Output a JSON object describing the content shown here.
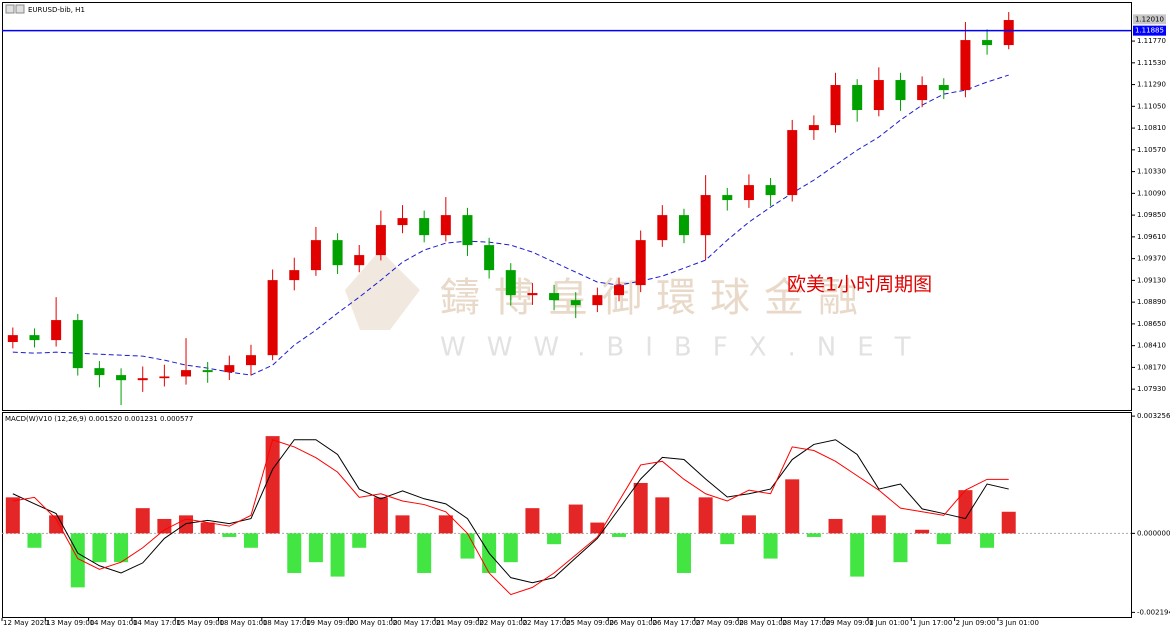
{
  "chart_data": {
    "type": "candlestick",
    "title": "EURUSD-bib, H1",
    "annotation": "欧美1小时周期图",
    "watermark": [
      "鑄博皇御環球金融",
      "WWW.BIBFX.NET"
    ],
    "categories": [
      "12 May 2020",
      null,
      "13 May 09:00",
      null,
      "14 May 01:00",
      null,
      "14 May 17:00",
      null,
      "15 May 09:00",
      null,
      "18 May 01:00",
      null,
      "18 May 17:00",
      null,
      "19 May 09:00",
      null,
      "20 May 01:00",
      null,
      "20 May 17:00",
      null,
      "21 May 09:00",
      null,
      "22 May 01:00",
      null,
      "22 May 17:00",
      null,
      "25 May 09:00",
      null,
      "26 May 01:00",
      null,
      "26 May 17:00",
      null,
      "27 May 09:00",
      null,
      "28 May 01:00",
      null,
      "28 May 17:00",
      null,
      "29 May 09:00",
      null,
      "1 Jun 01:00",
      null,
      "1 Jun 17:00",
      null,
      "2 Jun 09:00",
      null,
      "3 Jun 01:00"
    ],
    "open": [
      1.0845,
      1.08526,
      1.08471,
      1.08692,
      1.08162,
      1.08085,
      1.08029,
      1.08051,
      1.0807,
      1.0814,
      1.08118,
      1.08195,
      1.08305,
      1.09133,
      1.09243,
      1.09574,
      1.09298,
      1.09409,
      1.0974,
      1.09817,
      1.09629,
      1.0985,
      1.09519,
      1.09243,
      1.08967,
      1.0899,
      1.08912,
      1.08857,
      1.08967,
      1.09078,
      1.09574,
      1.0985,
      1.09629,
      1.10071,
      1.10016,
      1.10181,
      1.10071,
      1.10788,
      1.10843,
      1.11285,
      1.11009,
      1.1134,
      1.11119,
      1.11285,
      1.11229,
      1.11781,
      1.11726
    ],
    "high": [
      1.0861,
      1.086,
      1.08945,
      1.0876,
      1.0824,
      1.0816,
      1.0818,
      1.082,
      1.08493,
      1.0823,
      1.083,
      1.0842,
      1.0925,
      1.0938,
      1.0972,
      1.0965,
      1.0952,
      1.099,
      1.0996,
      1.099,
      1.10049,
      1.0993,
      1.096,
      1.0932,
      1.091,
      1.0908,
      1.09,
      1.0905,
      1.0916,
      1.0968,
      1.0996,
      1.0992,
      1.10291,
      1.1015,
      1.103,
      1.1026,
      1.109,
      1.1095,
      1.1142,
      1.1135,
      1.1148,
      1.1142,
      1.1138,
      1.1136,
      1.1198,
      1.119,
      1.1209
    ],
    "low": [
      1.0838,
      1.0839,
      1.084,
      1.0808,
      1.0795,
      1.07754,
      1.079,
      1.0796,
      1.0798,
      1.08,
      1.0803,
      1.0808,
      1.0825,
      1.0902,
      1.0918,
      1.092,
      1.0922,
      1.0935,
      1.0965,
      1.0955,
      1.0956,
      1.094,
      1.0915,
      1.0885,
      1.0886,
      1.088,
      1.08714,
      1.0878,
      1.089,
      1.09,
      1.095,
      1.0954,
      1.09354,
      1.099,
      1.0993,
      1.0995,
      1.1,
      1.1068,
      1.1076,
      1.1088,
      1.1094,
      1.11,
      1.1104,
      1.1113,
      1.1115,
      1.1162,
      1.1168
    ],
    "close": [
      1.08526,
      1.08471,
      1.08692,
      1.08162,
      1.08085,
      1.08029,
      1.08051,
      1.0807,
      1.0814,
      1.08118,
      1.08195,
      1.08305,
      1.09133,
      1.09243,
      1.09574,
      1.09298,
      1.09409,
      1.0974,
      1.09817,
      1.09629,
      1.0985,
      1.09519,
      1.09243,
      1.08967,
      1.0899,
      1.08912,
      1.08857,
      1.08967,
      1.09078,
      1.09574,
      1.0985,
      1.09629,
      1.10071,
      1.10016,
      1.10181,
      1.10071,
      1.10788,
      1.10843,
      1.11285,
      1.11009,
      1.1134,
      1.11119,
      1.11285,
      1.11229,
      1.11781,
      1.11726,
      1.12002
    ],
    "up_color": "#e00000",
    "down_color": "#00a000",
    "ma": {
      "color": "#1a1ad0",
      "values": [
        1.08338,
        1.08327,
        1.08338,
        1.08327,
        1.08316,
        1.08305,
        1.08294,
        1.0825,
        1.08195,
        1.08162,
        1.08118,
        1.08085,
        1.08195,
        1.08416,
        1.08581,
        1.08769,
        1.08945,
        1.09133,
        1.09331,
        1.09464,
        1.09541,
        1.09563,
        1.09552,
        1.09519,
        1.09442,
        1.09331,
        1.09221,
        1.09111,
        1.09078,
        1.09122,
        1.09177,
        1.09265,
        1.09354,
        1.09574,
        1.09773,
        1.09938,
        1.10093,
        1.10236,
        1.10402,
        1.10567,
        1.10711,
        1.10898,
        1.11064,
        1.11185,
        1.11229,
        1.11318,
        1.11395
      ]
    },
    "ylim": [
      1.077,
      1.1219
    ],
    "yticks": [
      {
        "value": 1.0793,
        "label": "1.07930"
      },
      {
        "value": 1.0817,
        "label": "1.08170"
      },
      {
        "value": 1.0841,
        "label": "1.08410"
      },
      {
        "value": 1.0865,
        "label": "1.08650"
      },
      {
        "value": 1.0889,
        "label": "1.08890"
      },
      {
        "value": 1.0913,
        "label": "1.09130"
      },
      {
        "value": 1.0937,
        "label": "1.09370"
      },
      {
        "value": 1.0961,
        "label": "1.09610"
      },
      {
        "value": 1.0985,
        "label": "1.09850"
      },
      {
        "value": 1.1009,
        "label": "1.10090"
      },
      {
        "value": 1.1033,
        "label": "1.10330"
      },
      {
        "value": 1.1057,
        "label": "1.10570"
      },
      {
        "value": 1.1081,
        "label": "1.10810"
      },
      {
        "value": 1.1105,
        "label": "1.11050"
      },
      {
        "value": 1.1129,
        "label": "1.11290"
      },
      {
        "value": 1.1153,
        "label": "1.11530"
      },
      {
        "value": 1.1177,
        "label": "1.11770"
      }
    ],
    "hline": {
      "value": 1.11885,
      "label": "1.11885",
      "color": "#0000ff"
    },
    "current_price": {
      "value": 1.1201,
      "label": "1.12010"
    },
    "indicator": {
      "title": "MACD(W)V10 (12,26,9) 0.001520 0.001231 0.000577",
      "ylim": [
        -0.00235,
        0.00337
      ],
      "yticks": [
        -0.002194,
        {
          "value": 0,
          "label": "0.000000"
        },
        0.003256
      ],
      "histogram": {
        "up_color": "#e00000",
        "down_color": "#22e022",
        "values": [
          0.001,
          -0.0004,
          0.0005,
          -0.0015,
          -0.0008,
          -0.0008,
          0.0007,
          0.0004,
          0.0005,
          0.0003,
          -0.0001,
          -0.0004,
          0.0027,
          -0.0011,
          -0.0008,
          -0.0012,
          -0.0004,
          0.001,
          0.0005,
          -0.0011,
          0.0005,
          -0.0007,
          -0.0011,
          -0.0008,
          0.0007,
          -0.0003,
          0.0008,
          0.0003,
          -0.0001,
          0.0014,
          0.001,
          -0.0011,
          0.001,
          -0.0003,
          0.0005,
          -0.0007,
          0.0015,
          -0.0001,
          0.0004,
          -0.0012,
          0.0005,
          -0.0008,
          0.0001,
          -0.0003,
          0.0012,
          -0.0004,
          0.0006
        ]
      },
      "macd_line": {
        "color": "#000000",
        "values": [
          0.0011,
          0.00082,
          0.00055,
          -0.00055,
          -0.0009,
          -0.0011,
          -0.00082,
          -0.00014,
          0.00027,
          0.00036,
          0.00027,
          0.00041,
          0.00178,
          0.0026,
          0.0026,
          0.00219,
          0.00123,
          0.00096,
          0.00118,
          0.00096,
          0.00082,
          0.00041,
          -0.00055,
          -0.00123,
          -0.00137,
          -0.00123,
          -0.00068,
          -0.00014,
          0.00068,
          0.00151,
          0.00211,
          0.00205,
          0.00151,
          0.00101,
          0.0011,
          0.00123,
          0.00205,
          0.00247,
          0.0026,
          0.00219,
          0.00123,
          0.00137,
          0.00068,
          0.00055,
          0.00041,
          0.00137,
          0.00123
        ]
      },
      "signal_line": {
        "color": "#ff0000",
        "values": [
          0.0009,
          0.001,
          0.0004,
          -0.0007,
          -0.001,
          -0.0008,
          -0.0004,
          0.0001,
          0.0004,
          0.0003,
          0.0002,
          0.0005,
          0.0026,
          0.0024,
          0.0021,
          0.0017,
          0.001,
          0.0011,
          0.0009,
          0.0008,
          0.0006,
          0,
          -0.0011,
          -0.0017,
          -0.0015,
          -0.0011,
          -0.0006,
          -0.0001,
          0.0009,
          0.0019,
          0.002,
          0.0015,
          0.0011,
          0.0009,
          0.0012,
          0.0011,
          0.0024,
          0.0023,
          0.002,
          0.0016,
          0.0012,
          0.0007,
          0.0006,
          0.0005,
          0.0012,
          0.0015,
          0.0015
        ]
      }
    }
  }
}
